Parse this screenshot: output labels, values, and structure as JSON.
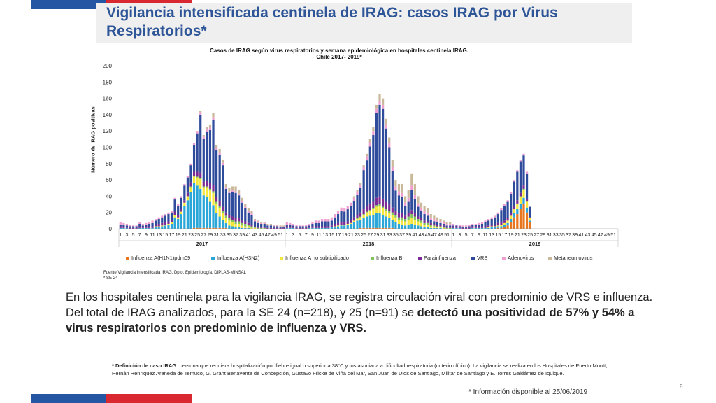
{
  "page": {
    "title": "Vigilancia intensificada centinela de IRAG: casos IRAG por  Virus Respiratorios*",
    "body_text_plain": "En los hospitales centinela para la vigilancia IRAG, se registra circulación viral con predominio de VRS e influenza. Del total de IRAG analizados, para la SE 24 (n=218), y 25 (n=91) se ",
    "body_text_bold": "detectó una positividad de 57% y 54% a virus respiratorios con predominio de  influenza y VRS.",
    "note_bold": "* Definición de caso IRAG:",
    "note_text": " persona que requiera hospitalización por fiebre igual o superior a 38°C y tos asociada a dificultad respiratoria (criterio clínico). La vigilancia se realiza en los Hospitales de Puerto Montt, Hernán Henríquez Araneda de  Temuco, G. Grant Benavente de Concepción, Gustavo Fricke de Viña del Mar, San Juan de Dios de Santiago, Militar de Santiago y E. Torres Galdámez de Iquique.",
    "info": "* Información disponible al  25/06/2019",
    "page_number": "8",
    "colors": {
      "flag_blue": "#2456a4",
      "flag_red": "#d9282f",
      "title": "#2e5597"
    }
  },
  "chart_data": {
    "type": "bar",
    "stacked": true,
    "title": "Casos de IRAG según virus respiratorios y semana epidemiológica en hospitales centinela IRAG.",
    "subtitle": "Chile 2017- 2019*",
    "ylabel": "Número de IRAG positivas",
    "ylim": [
      0,
      200
    ],
    "yticks": [
      0,
      20,
      40,
      60,
      80,
      100,
      120,
      140,
      160,
      180,
      200
    ],
    "xtick_labels": [
      "1",
      "3",
      "5",
      "7",
      "9",
      "11",
      "13",
      "15",
      "17",
      "19",
      "21",
      "23",
      "25",
      "27",
      "29",
      "31",
      "33",
      "35",
      "37",
      "39",
      "41",
      "43",
      "45",
      "47",
      "49",
      "51"
    ],
    "source": "Fuente:Vigilancia Intensificada IRAG. Dpto.  Epidemiología, DIPLAS-MINSAL",
    "footnote": "* SE 24",
    "series": [
      {
        "name": "Influenza A(H1N1)pdm09",
        "color": "#e8761e"
      },
      {
        "name": "Influenza A(H3N2)",
        "color": "#2aa7d8"
      },
      {
        "name": "Influenza A no subtipificado",
        "color": "#f5e63c"
      },
      {
        "name": "Influenza  B",
        "color": "#7fc458"
      },
      {
        "name": "Parainfluenza",
        "color": "#7b2c95"
      },
      {
        "name": "VRS",
        "color": "#2f4b9c"
      },
      {
        "name": "Adenovirus",
        "color": "#ee9fd0"
      },
      {
        "name": "Metaneumovirus",
        "color": "#c9b99a"
      }
    ],
    "years": [
      {
        "year": "2017",
        "weeks": 52,
        "totals": [
          8,
          7,
          6,
          5,
          4,
          4,
          8,
          6,
          7,
          8,
          10,
          12,
          14,
          16,
          18,
          20,
          22,
          38,
          30,
          40,
          55,
          65,
          80,
          105,
          120,
          145,
          115,
          125,
          128,
          142,
          103,
          98,
          85,
          55,
          50,
          52,
          52,
          48,
          38,
          30,
          25,
          22,
          12,
          10,
          8,
          8,
          6,
          6,
          5,
          5,
          4,
          4
        ],
        "h1n1": [
          0,
          0,
          0,
          0,
          0,
          0,
          0,
          0,
          0,
          0,
          0,
          0,
          0,
          0,
          0,
          0,
          0,
          0,
          0,
          0,
          0,
          0,
          0,
          1,
          1,
          1,
          1,
          1,
          1,
          1,
          1,
          1,
          1,
          1,
          0,
          0,
          0,
          0,
          0,
          0,
          0,
          0,
          0,
          0,
          0,
          0,
          0,
          0,
          0,
          0,
          0,
          0
        ],
        "h3n2": [
          1,
          1,
          1,
          0,
          0,
          0,
          1,
          1,
          1,
          1,
          1,
          2,
          2,
          3,
          4,
          5,
          6,
          14,
          12,
          18,
          28,
          35,
          45,
          55,
          52,
          48,
          40,
          38,
          32,
          28,
          18,
          14,
          10,
          6,
          4,
          3,
          2,
          2,
          1,
          1,
          1,
          0,
          0,
          0,
          0,
          0,
          0,
          0,
          0,
          0,
          0,
          0
        ],
        "fluA": [
          0,
          0,
          0,
          0,
          0,
          0,
          0,
          0,
          0,
          0,
          0,
          1,
          1,
          1,
          1,
          1,
          2,
          3,
          2,
          3,
          4,
          5,
          6,
          8,
          10,
          12,
          10,
          12,
          14,
          15,
          12,
          10,
          8,
          6,
          6,
          5,
          4,
          4,
          3,
          2,
          2,
          1,
          1,
          0,
          0,
          0,
          0,
          0,
          0,
          0,
          0,
          0
        ],
        "fluB": [
          0,
          0,
          0,
          0,
          0,
          0,
          0,
          0,
          0,
          0,
          0,
          0,
          0,
          0,
          0,
          0,
          0,
          0,
          0,
          0,
          0,
          0,
          1,
          1,
          1,
          1,
          1,
          1,
          2,
          2,
          2,
          3,
          3,
          3,
          3,
          3,
          3,
          3,
          3,
          3,
          2,
          2,
          1,
          1,
          1,
          1,
          0,
          0,
          0,
          0,
          0,
          0
        ],
        "para": [
          2,
          2,
          1,
          1,
          1,
          1,
          2,
          1,
          2,
          2,
          2,
          2,
          3,
          3,
          3,
          3,
          3,
          4,
          3,
          3,
          3,
          4,
          5,
          5,
          6,
          7,
          6,
          7,
          7,
          8,
          6,
          6,
          5,
          4,
          4,
          4,
          4,
          4,
          3,
          3,
          2,
          2,
          1,
          1,
          1,
          1,
          1,
          1,
          1,
          1,
          1,
          1
        ],
        "vrs": [
          2,
          2,
          2,
          2,
          2,
          2,
          3,
          2,
          2,
          3,
          4,
          5,
          6,
          7,
          8,
          9,
          9,
          15,
          11,
          14,
          18,
          19,
          21,
          33,
          47,
          71,
          52,
          60,
          65,
          80,
          58,
          57,
          51,
          29,
          27,
          30,
          31,
          28,
          22,
          16,
          13,
          12,
          6,
          5,
          4,
          4,
          3,
          3,
          2,
          2,
          1,
          1
        ],
        "adeno": [
          3,
          2,
          2,
          2,
          1,
          1,
          2,
          2,
          2,
          2,
          3,
          2,
          2,
          2,
          2,
          2,
          2,
          2,
          2,
          2,
          2,
          2,
          2,
          2,
          3,
          3,
          3,
          3,
          3,
          3,
          2,
          3,
          3,
          2,
          2,
          2,
          2,
          2,
          2,
          2,
          2,
          2,
          2,
          2,
          1,
          1,
          1,
          1,
          1,
          1,
          1,
          1
        ],
        "meta": [
          0,
          0,
          0,
          0,
          0,
          0,
          0,
          0,
          0,
          0,
          0,
          0,
          0,
          0,
          0,
          0,
          0,
          0,
          0,
          0,
          0,
          0,
          0,
          0,
          0,
          2,
          2,
          3,
          4,
          5,
          4,
          4,
          4,
          4,
          4,
          5,
          6,
          5,
          4,
          3,
          3,
          3,
          1,
          1,
          1,
          1,
          1,
          1,
          1,
          1,
          1,
          1
        ]
      },
      {
        "year": "2018",
        "weeks": 52,
        "totals": [
          8,
          7,
          6,
          5,
          4,
          4,
          5,
          6,
          8,
          10,
          10,
          12,
          12,
          12,
          14,
          18,
          22,
          26,
          25,
          28,
          32,
          40,
          48,
          56,
          78,
          92,
          110,
          125,
          152,
          165,
          160,
          135,
          112,
          85,
          60,
          55,
          55,
          40,
          48,
          68,
          55,
          40,
          32,
          28,
          25,
          18,
          16,
          14,
          12,
          10,
          8,
          8
        ],
        "h1n1": [
          0,
          0,
          0,
          0,
          0,
          0,
          0,
          0,
          0,
          0,
          0,
          0,
          0,
          0,
          0,
          0,
          0,
          0,
          0,
          0,
          0,
          0,
          0,
          1,
          1,
          1,
          1,
          1,
          1,
          1,
          1,
          1,
          1,
          1,
          0,
          0,
          0,
          0,
          0,
          0,
          0,
          0,
          0,
          0,
          0,
          0,
          0,
          0,
          0,
          0,
          0,
          0
        ],
        "h3n2": [
          1,
          1,
          1,
          0,
          0,
          0,
          0,
          1,
          1,
          1,
          1,
          1,
          1,
          1,
          2,
          2,
          3,
          4,
          4,
          5,
          6,
          8,
          10,
          10,
          12,
          14,
          15,
          16,
          18,
          18,
          16,
          14,
          12,
          10,
          8,
          6,
          5,
          4,
          5,
          6,
          5,
          4,
          3,
          2,
          2,
          1,
          1,
          1,
          1,
          0,
          0,
          0
        ],
        "fluA": [
          0,
          0,
          0,
          0,
          0,
          0,
          0,
          0,
          0,
          0,
          0,
          0,
          0,
          0,
          0,
          1,
          1,
          1,
          1,
          1,
          1,
          2,
          2,
          3,
          4,
          5,
          6,
          7,
          8,
          9,
          8,
          7,
          6,
          6,
          6,
          5,
          5,
          5,
          6,
          7,
          6,
          5,
          4,
          3,
          3,
          2,
          2,
          1,
          1,
          1,
          0,
          0
        ],
        "fluB": [
          0,
          0,
          0,
          0,
          0,
          0,
          0,
          0,
          0,
          0,
          0,
          0,
          0,
          0,
          0,
          0,
          0,
          0,
          0,
          0,
          0,
          0,
          1,
          1,
          1,
          1,
          1,
          1,
          2,
          2,
          2,
          2,
          3,
          3,
          3,
          3,
          4,
          3,
          4,
          5,
          4,
          3,
          3,
          2,
          2,
          2,
          1,
          1,
          1,
          1,
          1,
          1
        ],
        "para": [
          2,
          2,
          1,
          1,
          1,
          1,
          1,
          1,
          2,
          2,
          2,
          2,
          2,
          2,
          2,
          3,
          3,
          3,
          3,
          3,
          4,
          4,
          4,
          5,
          6,
          7,
          8,
          8,
          9,
          10,
          10,
          9,
          8,
          6,
          5,
          5,
          5,
          4,
          4,
          5,
          4,
          3,
          3,
          3,
          2,
          2,
          2,
          2,
          2,
          2,
          1,
          1
        ],
        "vrs": [
          2,
          2,
          2,
          2,
          2,
          2,
          2,
          2,
          3,
          4,
          4,
          6,
          6,
          6,
          6,
          8,
          11,
          14,
          13,
          15,
          17,
          20,
          25,
          30,
          48,
          56,
          70,
          82,
          104,
          112,
          110,
          90,
          70,
          45,
          25,
          22,
          20,
          12,
          14,
          25,
          18,
          12,
          9,
          8,
          7,
          4,
          3,
          3,
          2,
          2,
          2,
          2
        ],
        "adeno": [
          3,
          2,
          2,
          2,
          1,
          1,
          2,
          2,
          2,
          3,
          3,
          3,
          3,
          3,
          4,
          4,
          4,
          4,
          4,
          4,
          4,
          4,
          4,
          4,
          4,
          5,
          5,
          5,
          5,
          5,
          5,
          5,
          5,
          5,
          5,
          5,
          5,
          4,
          5,
          5,
          5,
          4,
          4,
          4,
          3,
          3,
          3,
          2,
          2,
          2,
          2,
          2
        ],
        "meta": [
          0,
          0,
          0,
          0,
          0,
          0,
          0,
          0,
          0,
          0,
          0,
          0,
          0,
          0,
          0,
          0,
          0,
          0,
          0,
          0,
          0,
          2,
          2,
          2,
          2,
          3,
          4,
          5,
          5,
          8,
          8,
          7,
          7,
          9,
          8,
          9,
          11,
          8,
          10,
          15,
          13,
          9,
          6,
          6,
          6,
          4,
          4,
          4,
          3,
          2,
          2,
          2
        ]
      },
      {
        "year": "2019",
        "weeks": 25,
        "totals": [
          6,
          5,
          5,
          4,
          4,
          5,
          6,
          6,
          7,
          8,
          10,
          12,
          14,
          16,
          20,
          25,
          30,
          35,
          45,
          60,
          72,
          85,
          92,
          70,
          27
        ],
        "h1n1": [
          0,
          0,
          0,
          0,
          0,
          0,
          0,
          0,
          0,
          0,
          0,
          0,
          0,
          0,
          1,
          1,
          2,
          4,
          8,
          14,
          18,
          24,
          30,
          20,
          8
        ],
        "h3n2": [
          1,
          1,
          1,
          0,
          0,
          0,
          1,
          1,
          1,
          1,
          1,
          1,
          2,
          2,
          2,
          2,
          3,
          3,
          4,
          5,
          6,
          7,
          8,
          6,
          2
        ],
        "fluA": [
          0,
          0,
          0,
          0,
          0,
          0,
          0,
          0,
          0,
          0,
          0,
          1,
          1,
          1,
          1,
          2,
          2,
          3,
          4,
          5,
          6,
          8,
          10,
          7,
          3
        ],
        "fluB": [
          0,
          0,
          0,
          0,
          0,
          0,
          0,
          0,
          0,
          0,
          0,
          0,
          0,
          0,
          0,
          0,
          0,
          0,
          0,
          0,
          1,
          1,
          1,
          1,
          0
        ],
        "para": [
          2,
          2,
          1,
          1,
          1,
          1,
          2,
          2,
          2,
          2,
          2,
          2,
          2,
          2,
          3,
          3,
          3,
          3,
          3,
          4,
          4,
          4,
          4,
          3,
          1
        ],
        "vrs": [
          1,
          1,
          1,
          1,
          1,
          2,
          2,
          2,
          2,
          3,
          5,
          6,
          7,
          9,
          11,
          15,
          18,
          20,
          24,
          30,
          35,
          39,
          37,
          31,
          13
        ],
        "adeno": [
          2,
          1,
          2,
          2,
          2,
          2,
          1,
          1,
          2,
          2,
          2,
          2,
          2,
          2,
          2,
          2,
          2,
          2,
          2,
          2,
          2,
          2,
          2,
          2,
          0
        ],
        "meta": [
          0,
          0,
          0,
          0,
          0,
          0,
          0,
          0,
          0,
          0,
          0,
          0,
          0,
          0,
          0,
          0,
          0,
          0,
          0,
          0,
          0,
          0,
          0,
          0,
          0
        ]
      }
    ]
  }
}
